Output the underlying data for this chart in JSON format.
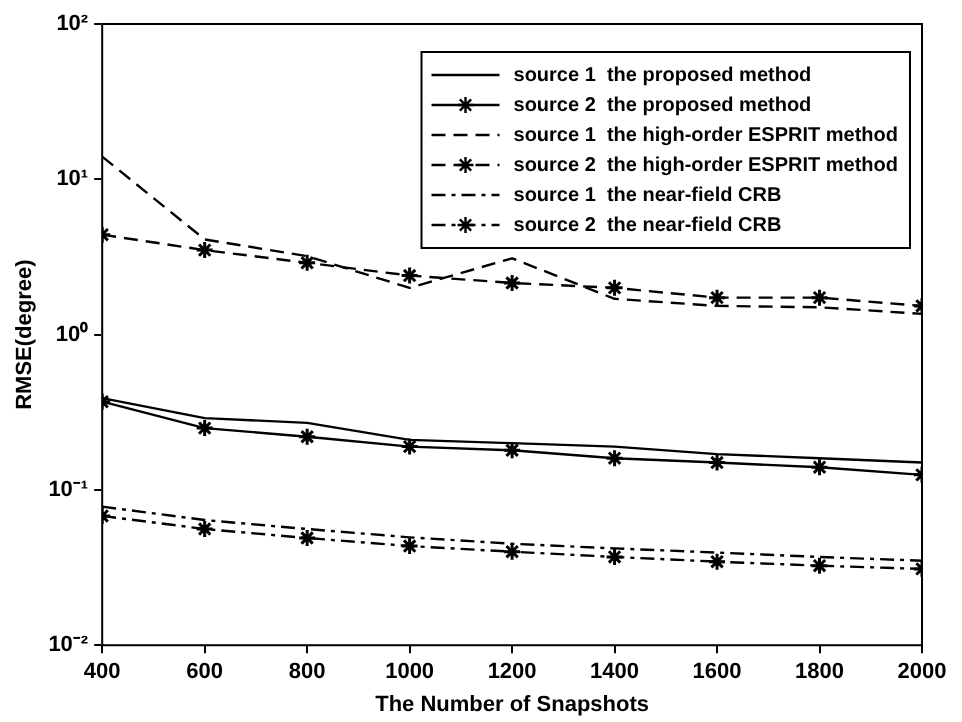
{
  "chart_data": {
    "type": "line",
    "xlabel": "The Number of Snapshots",
    "ylabel": "RMSE(degree)",
    "x": [
      400,
      600,
      800,
      1000,
      1200,
      1400,
      1600,
      1800,
      2000
    ],
    "series": [
      {
        "name": "source 1  the proposed method",
        "color": "#000000",
        "marker": "none",
        "line_style": "solid",
        "values": [
          0.39,
          0.29,
          0.27,
          0.21,
          0.2,
          0.19,
          0.17,
          0.16,
          0.15
        ]
      },
      {
        "name": "source 2  the proposed method",
        "color": "#000000",
        "marker": "cross",
        "line_style": "solid",
        "values": [
          0.37,
          0.25,
          0.22,
          0.19,
          0.18,
          0.16,
          0.15,
          0.14,
          0.125
        ]
      },
      {
        "name": "source 1  the high-order ESPRIT method",
        "color": "#000000",
        "marker": "none",
        "line_style": "dashed",
        "values": [
          14,
          4.1,
          3.2,
          2.0,
          3.1,
          1.7,
          1.53,
          1.5,
          1.36
        ]
      },
      {
        "name": "source 2  the high-order ESPRIT method",
        "color": "#000000",
        "marker": "cross",
        "line_style": "dashed",
        "values": [
          4.4,
          3.5,
          2.9,
          2.4,
          2.15,
          2.0,
          1.73,
          1.73,
          1.53
        ]
      },
      {
        "name": "source 1  the near-field CRB",
        "color": "#000000",
        "marker": "none",
        "line_style": "dashdot",
        "values": [
          0.078,
          0.064,
          0.056,
          0.0495,
          0.045,
          0.042,
          0.0395,
          0.037,
          0.035
        ]
      },
      {
        "name": "source 2  the near-field CRB",
        "color": "#000000",
        "marker": "cross",
        "line_style": "dashdot",
        "values": [
          0.068,
          0.056,
          0.049,
          0.0435,
          0.04,
          0.037,
          0.0345,
          0.0325,
          0.031
        ]
      }
    ],
    "xlim": [
      400,
      2000
    ],
    "xticks": [
      400,
      600,
      800,
      1000,
      1200,
      1400,
      1600,
      1800,
      2000
    ],
    "ylim": [
      0.01,
      100
    ],
    "yticks": [
      {
        "value": 0.01,
        "label": "10⁻²"
      },
      {
        "value": 0.1,
        "label": "10⁻¹"
      },
      {
        "value": 1,
        "label": "10⁰"
      },
      {
        "value": 10,
        "label": "10¹"
      },
      {
        "value": 100,
        "label": "10²"
      }
    ],
    "log": true,
    "grid": false,
    "legend": "top right"
  }
}
